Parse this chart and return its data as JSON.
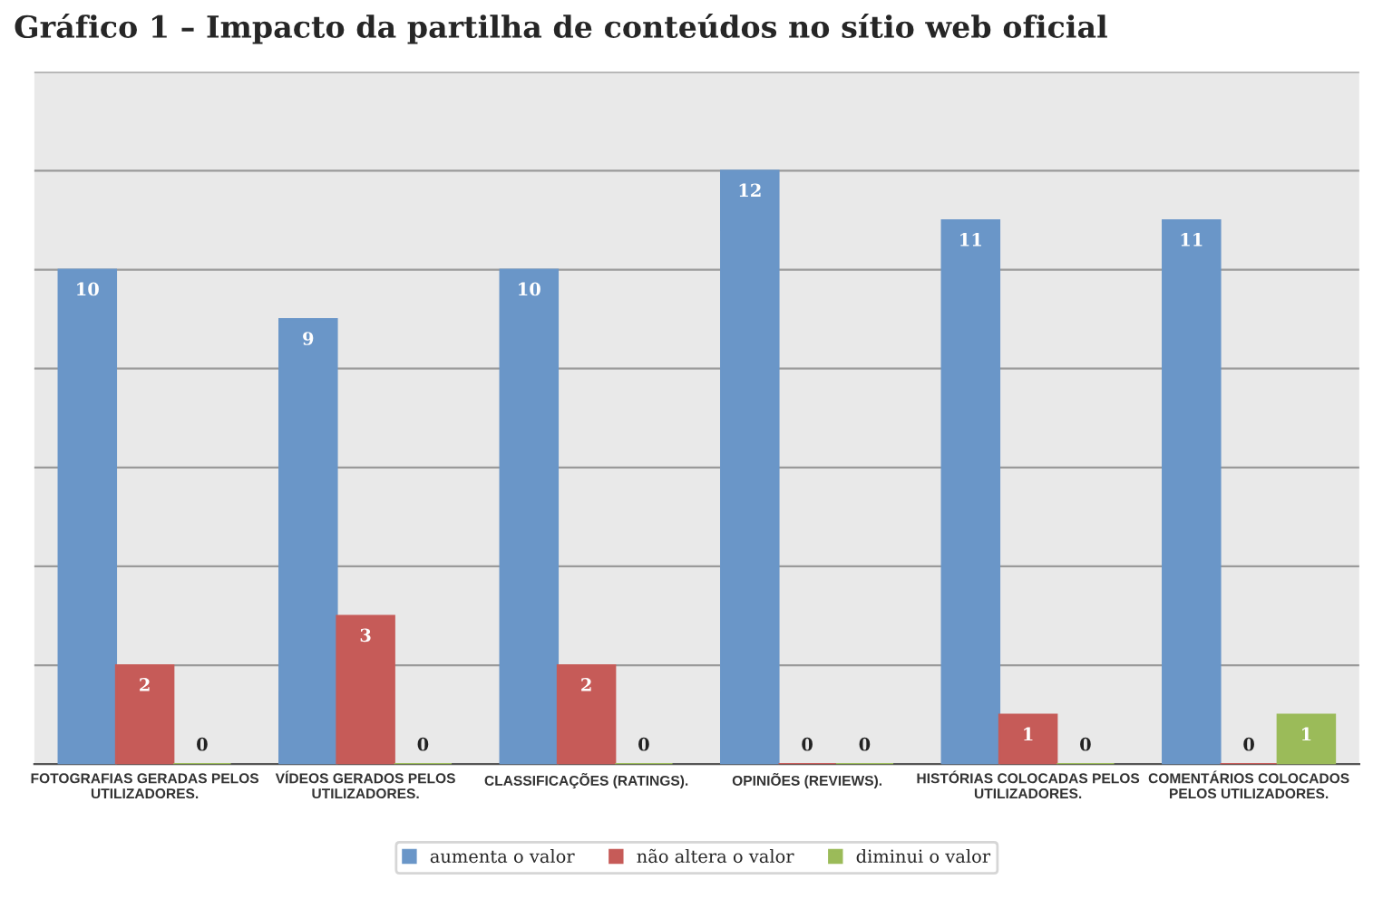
{
  "chart_data": {
    "type": "bar",
    "title": "Gráfico 1 – Impacto da partilha de conteúdos no sítio web oficial",
    "categories": [
      "FOTOGRAFIAS GERADAS PELOS\nUTILIZADORES.",
      "VÍDEOS GERADOS PELOS\nUTILIZADORES.",
      "CLASSIFICAÇÕES (RATINGS).",
      "OPINIÕES (REVIEWS).",
      "HISTÓRIAS COLOCADAS PELOS\nUTILIZADORES.",
      "COMENTÁRIOS COLOCADOS\nPELOS UTILIZADORES."
    ],
    "series": [
      {
        "name": "aumenta o valor",
        "color": "#6a96c8",
        "values": [
          10,
          9,
          10,
          12,
          11,
          11
        ]
      },
      {
        "name": "não altera o valor",
        "color": "#c65b58",
        "values": [
          2,
          3,
          2,
          0,
          1,
          0
        ]
      },
      {
        "name": "diminui o valor",
        "color": "#9bbb59",
        "values": [
          0,
          0,
          0,
          0,
          0,
          1
        ]
      }
    ],
    "ylim": [
      0,
      14
    ],
    "yticks": [
      {
        "value": 0,
        "label": null
      },
      {
        "value": 2,
        "label": null
      },
      {
        "value": 4,
        "label": null
      },
      {
        "value": 6,
        "label": null
      },
      {
        "value": 8,
        "label": null
      },
      {
        "value": 10,
        "label": null
      },
      {
        "value": 12,
        "label": null
      },
      {
        "value": 14,
        "label": null
      }
    ],
    "tick_labels": "x",
    "grid": "y",
    "legend": "bottom",
    "data_labels": true
  }
}
